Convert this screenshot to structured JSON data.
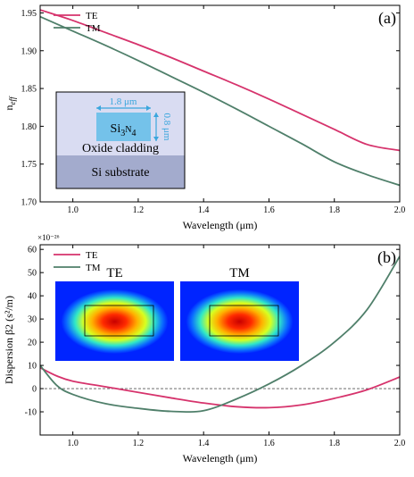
{
  "chart_data": [
    {
      "type": "line",
      "panel_label": "(a)",
      "xlabel": "Wavelength (μm)",
      "ylabel": "n_eff",
      "xlim": [
        0.9,
        2.0
      ],
      "ylim": [
        1.7,
        1.96
      ],
      "xticks": [
        "1.0",
        "1.2",
        "1.4",
        "1.6",
        "1.8",
        "2.0"
      ],
      "yticks": [
        "1.70",
        "1.75",
        "1.80",
        "1.85",
        "1.90",
        "1.95"
      ],
      "legend": "top-left",
      "series": [
        {
          "name": "TE",
          "color": "#d6336c",
          "x": [
            0.9,
            1.0,
            1.1,
            1.2,
            1.3,
            1.4,
            1.5,
            1.6,
            1.7,
            1.8,
            1.9,
            2.0
          ],
          "y": [
            1.954,
            1.94,
            1.924,
            1.908,
            1.891,
            1.873,
            1.855,
            1.836,
            1.816,
            1.796,
            1.776,
            1.768
          ]
        },
        {
          "name": "TM",
          "color": "#4f7f6a",
          "x": [
            0.9,
            1.0,
            1.1,
            1.2,
            1.3,
            1.4,
            1.5,
            1.6,
            1.7,
            1.8,
            1.9,
            2.0
          ],
          "y": [
            1.945,
            1.926,
            1.907,
            1.887,
            1.866,
            1.845,
            1.823,
            1.8,
            1.777,
            1.753,
            1.736,
            1.722
          ]
        }
      ],
      "inset": {
        "core_label": "Si3N4",
        "width_label": "1.8 μm",
        "height_label": "0.8 μm",
        "cladding_label": "Oxide cladding",
        "substrate_label": "Si substrate"
      }
    },
    {
      "type": "line",
      "panel_label": "(b)",
      "xlabel": "Wavelength (μm)",
      "ylabel": "Dispersion β2 (s²/m)",
      "y_multiplier": "×10⁻²⁶",
      "xlim": [
        0.9,
        2.0
      ],
      "ylim": [
        -20,
        62
      ],
      "xticks": [
        "1.0",
        "1.2",
        "1.4",
        "1.6",
        "1.8",
        "2.0"
      ],
      "yticks": [
        "-10",
        "0",
        "10",
        "20",
        "30",
        "40",
        "50",
        "60"
      ],
      "legend": "top-left",
      "zero_line": true,
      "series": [
        {
          "name": "TE",
          "color": "#d6336c",
          "x": [
            0.9,
            0.95,
            1.0,
            1.1,
            1.2,
            1.3,
            1.4,
            1.5,
            1.6,
            1.7,
            1.8,
            1.9,
            2.0
          ],
          "y": [
            9.0,
            5.5,
            3.2,
            0.8,
            -1.6,
            -4.0,
            -6.2,
            -7.8,
            -8.2,
            -7.0,
            -4.2,
            -0.5,
            5.0
          ]
        },
        {
          "name": "TM",
          "color": "#4f7f6a",
          "x": [
            0.9,
            0.95,
            1.0,
            1.1,
            1.2,
            1.3,
            1.4,
            1.5,
            1.6,
            1.7,
            1.8,
            1.9,
            2.0
          ],
          "y": [
            10.0,
            1.5,
            -2.5,
            -6.5,
            -8.5,
            -9.8,
            -9.5,
            -4.5,
            2.0,
            10.0,
            20.0,
            34.0,
            57.0
          ]
        }
      ],
      "mode_labels": [
        "TE",
        "TM"
      ]
    }
  ]
}
